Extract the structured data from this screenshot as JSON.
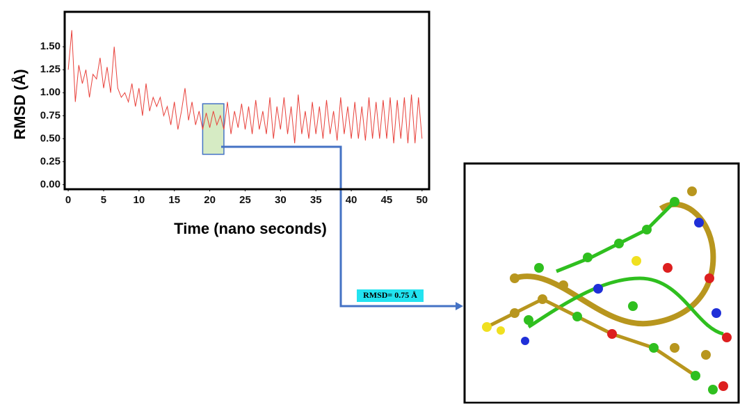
{
  "chart_data": {
    "type": "line",
    "ylabel": "RMSD (Å)",
    "xlabel": "Time (nano seconds)",
    "xlim": [
      -0.5,
      51
    ],
    "ylim": [
      -0.05,
      1.88
    ],
    "xticks": [
      0,
      5,
      10,
      15,
      20,
      25,
      30,
      35,
      40,
      45,
      50
    ],
    "yticks": [
      {
        "value": 0,
        "label": "0.00"
      },
      {
        "value": 0.25,
        "label": "0.25"
      },
      {
        "value": 0.5,
        "label": "0.50"
      },
      {
        "value": 0.75,
        "label": "0.75"
      },
      {
        "value": 1,
        "label": "1.00"
      },
      {
        "value": 1.25,
        "label": "1.25"
      },
      {
        "value": 1.5,
        "label": "1.50"
      }
    ],
    "x": [
      0,
      0.5,
      1,
      1.5,
      2,
      2.5,
      3,
      3.5,
      4,
      4.5,
      5,
      5.5,
      6,
      6.5,
      7,
      7.5,
      8,
      8.5,
      9,
      9.5,
      10,
      10.5,
      11,
      11.5,
      12,
      12.5,
      13,
      13.5,
      14,
      14.5,
      15,
      15.5,
      16,
      16.5,
      17,
      17.5,
      18,
      18.5,
      19,
      19.5,
      20,
      20.5,
      21,
      21.5,
      22,
      22.5,
      23,
      23.5,
      24,
      24.5,
      25,
      25.5,
      26,
      26.5,
      27,
      27.5,
      28,
      28.5,
      29,
      29.5,
      30,
      30.5,
      31,
      31.5,
      32,
      32.5,
      33,
      33.5,
      34,
      34.5,
      35,
      35.5,
      36,
      36.5,
      37,
      37.5,
      38,
      38.5,
      39,
      39.5,
      40,
      40.5,
      41,
      41.5,
      42,
      42.5,
      43,
      43.5,
      44,
      44.5,
      45,
      45.5,
      46,
      46.5,
      47,
      47.5,
      48,
      48.5,
      49,
      49.5,
      50
    ],
    "series": [
      {
        "color": "#e8403a",
        "values": [
          1.25,
          1.68,
          0.9,
          1.3,
          1.1,
          1.25,
          0.95,
          1.2,
          1.15,
          1.38,
          1.05,
          1.28,
          1.0,
          1.5,
          1.05,
          0.95,
          1.0,
          0.9,
          1.1,
          0.85,
          1.05,
          0.75,
          1.1,
          0.8,
          0.95,
          0.85,
          0.95,
          0.75,
          0.85,
          0.65,
          0.9,
          0.6,
          0.8,
          1.05,
          0.7,
          0.9,
          0.65,
          0.8,
          0.6,
          0.78,
          0.62,
          0.8,
          0.65,
          0.75,
          0.6,
          0.9,
          0.55,
          0.8,
          0.62,
          0.88,
          0.6,
          0.85,
          0.55,
          0.92,
          0.6,
          0.8,
          0.55,
          0.95,
          0.5,
          0.85,
          0.6,
          0.95,
          0.55,
          0.85,
          0.45,
          0.98,
          0.55,
          0.8,
          0.5,
          0.9,
          0.55,
          0.85,
          0.5,
          0.92,
          0.55,
          0.8,
          0.48,
          0.95,
          0.55,
          0.85,
          0.5,
          0.9,
          0.5,
          0.85,
          0.48,
          0.95,
          0.5,
          0.9,
          0.5,
          0.92,
          0.5,
          0.95,
          0.45,
          0.92,
          0.5,
          0.95,
          0.45,
          0.98,
          0.45,
          0.95,
          0.5
        ]
      }
    ],
    "highlight": {
      "xlim": [
        19,
        22
      ],
      "ylim": [
        0.33,
        0.88
      ],
      "color": "#d6ebc4"
    },
    "annotation": "RMSD= 0.75 Å"
  }
}
